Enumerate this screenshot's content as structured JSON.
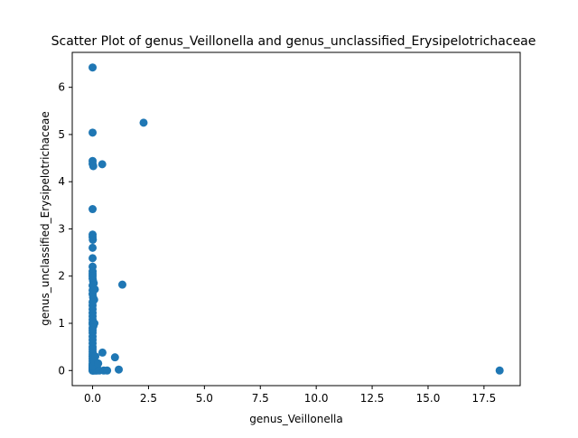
{
  "chart_data": {
    "type": "scatter",
    "title": "Scatter Plot of genus_Veillonella and genus_unclassified_Erysipelotrichaceae",
    "xlabel": "genus_Veillonella",
    "ylabel": "genus_unclassified_Erysipelotrichaceae",
    "xlim": [
      -0.91,
      19.12
    ],
    "ylim": [
      -0.32,
      6.74
    ],
    "x_ticks": [
      0.0,
      2.5,
      5.0,
      7.5,
      10.0,
      12.5,
      15.0,
      17.5
    ],
    "x_tick_labels": [
      "0.0",
      "2.5",
      "5.0",
      "7.5",
      "10.0",
      "12.5",
      "15.0",
      "17.5"
    ],
    "y_ticks": [
      0,
      1,
      2,
      3,
      4,
      5,
      6
    ],
    "y_tick_labels": [
      "0",
      "1",
      "2",
      "3",
      "4",
      "5",
      "6"
    ],
    "grid": false,
    "marker_color": "#1f77b4",
    "x": [
      0.0,
      0.0,
      2.28,
      0.0,
      0.0,
      0.03,
      0.43,
      0.0,
      0.0,
      0.0,
      0.01,
      0.0,
      0.0,
      0.0,
      0.0,
      0.0,
      0.0,
      0.0,
      0.02,
      0.05,
      0.0,
      0.1,
      1.33,
      0.0,
      0.0,
      0.02,
      0.07,
      0.0,
      0.0,
      0.0,
      0.0,
      0.0,
      0.0,
      0.0,
      0.0,
      0.04,
      0.08,
      0.0,
      0.0,
      0.0,
      0.0,
      0.0,
      0.0,
      0.0,
      0.0,
      0.0,
      0.0,
      0.0,
      0.0,
      0.0,
      0.0,
      0.44,
      1.0,
      0.0,
      0.0,
      0.0,
      0.0,
      0.0,
      0.0,
      0.0,
      0.0,
      0.0,
      0.0,
      0.0,
      0.02,
      0.05,
      0.1,
      0.15,
      0.2,
      0.3,
      0.5,
      0.65,
      1.17,
      18.2,
      0.0,
      0.05,
      0.12,
      0.25
    ],
    "y": [
      6.42,
      5.04,
      5.25,
      4.44,
      4.38,
      4.33,
      4.37,
      3.42,
      2.88,
      2.83,
      2.77,
      2.6,
      2.38,
      2.2,
      2.1,
      2.05,
      2.0,
      1.95,
      1.9,
      1.85,
      1.8,
      1.72,
      1.82,
      1.7,
      1.62,
      1.55,
      1.5,
      1.45,
      1.38,
      1.3,
      1.22,
      1.15,
      1.08,
      1.02,
      0.98,
      0.95,
      1.0,
      0.9,
      0.85,
      0.8,
      0.72,
      0.65,
      0.58,
      0.5,
      0.45,
      0.4,
      0.35,
      0.3,
      0.25,
      0.2,
      0.15,
      0.38,
      0.28,
      0.12,
      0.1,
      0.08,
      0.06,
      0.05,
      0.04,
      0.03,
      0.02,
      0.01,
      0.0,
      0.0,
      0.0,
      0.0,
      0.0,
      0.0,
      0.0,
      0.0,
      0.0,
      0.0,
      0.02,
      0.0,
      0.1,
      0.2,
      0.3,
      0.15
    ]
  }
}
